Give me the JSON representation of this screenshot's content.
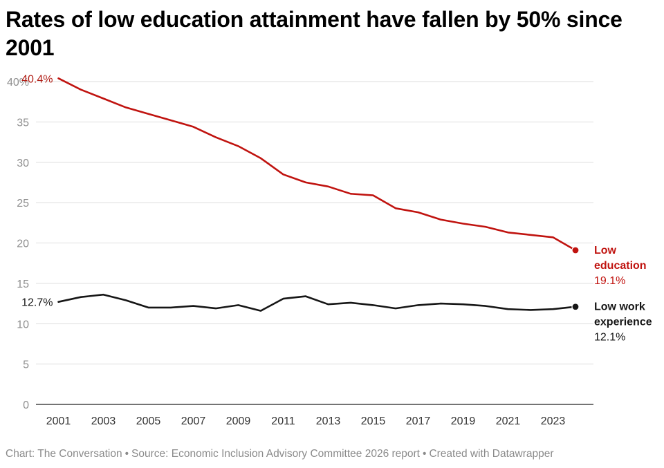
{
  "title": "Rates of low education attainment have fallen by 50% since 2001",
  "footer": {
    "chart": "Chart: The Conversation",
    "source": "Source: Economic Inclusion Advisory Committee 2026 report",
    "created": "Created with Datawrapper",
    "separator": "•"
  },
  "chart_data": {
    "type": "line",
    "title": "Rates of low education attainment have fallen by 50% since 2001",
    "xlabel": "",
    "ylabel": "",
    "xlim": [
      2000,
      2024
    ],
    "ylim": [
      0,
      40
    ],
    "grid": true,
    "y_ticks": [
      {
        "value": 0,
        "label": "0"
      },
      {
        "value": 5,
        "label": "5"
      },
      {
        "value": 10,
        "label": "10"
      },
      {
        "value": 15,
        "label": "15"
      },
      {
        "value": 20,
        "label": "20"
      },
      {
        "value": 25,
        "label": "25"
      },
      {
        "value": 30,
        "label": "30"
      },
      {
        "value": 35,
        "label": "35"
      },
      {
        "value": 40,
        "label": "40%"
      }
    ],
    "x_ticks": [
      {
        "value": 2001,
        "label": "2001"
      },
      {
        "value": 2003,
        "label": "2003"
      },
      {
        "value": 2005,
        "label": "2005"
      },
      {
        "value": 2007,
        "label": "2007"
      },
      {
        "value": 2009,
        "label": "2009"
      },
      {
        "value": 2011,
        "label": "2011"
      },
      {
        "value": 2013,
        "label": "2013"
      },
      {
        "value": 2015,
        "label": "2015"
      },
      {
        "value": 2017,
        "label": "2017"
      },
      {
        "value": 2019,
        "label": "2019"
      },
      {
        "value": 2021,
        "label": "2021"
      },
      {
        "value": 2023,
        "label": "2023"
      }
    ],
    "x": [
      2001,
      2002,
      2003,
      2004,
      2005,
      2006,
      2007,
      2008,
      2009,
      2010,
      2011,
      2012,
      2013,
      2014,
      2015,
      2016,
      2017,
      2018,
      2019,
      2020,
      2021,
      2022,
      2023,
      2024
    ],
    "series": [
      {
        "name": "Low education",
        "legend_lines": [
          "Low",
          "education"
        ],
        "end_label": "19.1%",
        "start_label": "40.4%",
        "color": "#c0130f",
        "label_color": "#c0130f",
        "start_label_color": "#b01a12",
        "values": [
          40.4,
          39.0,
          37.9,
          36.8,
          36.0,
          35.2,
          34.4,
          33.1,
          32.0,
          30.5,
          28.5,
          27.5,
          27.0,
          26.1,
          25.9,
          24.3,
          23.8,
          22.9,
          22.4,
          22.0,
          21.3,
          21.0,
          20.7,
          19.1
        ]
      },
      {
        "name": "Low work experience",
        "legend_lines": [
          "Low work",
          "experience"
        ],
        "end_label": "12.1%",
        "start_label": "12.7%",
        "color": "#161616",
        "label_color": "#161616",
        "start_label_color": "#161616",
        "values": [
          12.7,
          13.3,
          13.6,
          12.9,
          12.0,
          12.0,
          12.2,
          11.9,
          12.3,
          11.6,
          13.1,
          13.4,
          12.4,
          12.6,
          12.3,
          11.9,
          12.3,
          12.5,
          12.4,
          12.2,
          11.8,
          11.7,
          11.8,
          12.1
        ]
      }
    ]
  },
  "colors": {
    "grid": "#dedede",
    "axis": "#222222",
    "tick_label": "#8f8f8f",
    "x_tick_label": "#333333"
  }
}
